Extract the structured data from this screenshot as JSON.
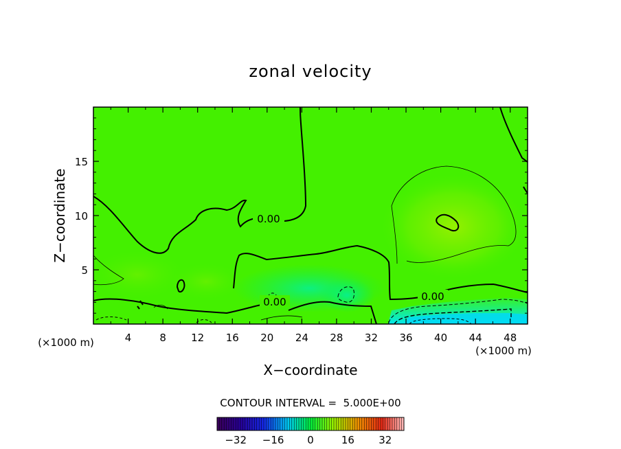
{
  "chart_data": {
    "type": "contour",
    "title": "zonal velocity",
    "xlabel": "X−coordinate",
    "ylabel": "Z−coordinate",
    "x_unit_left": "(×1000 m)",
    "x_unit_right": "(×1000 m)",
    "xlim": [
      0,
      50
    ],
    "ylim": [
      0,
      20
    ],
    "x_ticks": [
      4,
      8,
      12,
      16,
      20,
      24,
      28,
      32,
      36,
      40,
      44,
      48
    ],
    "x_tick_labels": [
      "4",
      "8",
      "12",
      "16",
      "20",
      "24",
      "28",
      "32",
      "36",
      "40",
      "44",
      "48"
    ],
    "y_ticks": [
      5,
      10,
      15
    ],
    "y_tick_labels": [
      "5",
      "10",
      "15"
    ],
    "contour_labels": [
      {
        "text": "0.00",
        "x": 22.0,
        "y": 9.8
      },
      {
        "text": "0.00",
        "x": 21.0,
        "y": 2.0
      },
      {
        "text": "0.00",
        "x": 39.0,
        "y": 2.5
      }
    ],
    "contour_interval_text": "CONTOUR INTERVAL =  5.000E+00",
    "colorbar": {
      "min": -40,
      "max": 40,
      "tick_values": [
        -32,
        -16,
        0,
        16,
        32
      ],
      "tick_labels": [
        "−32",
        "−16",
        "0",
        "16",
        "32"
      ]
    }
  }
}
